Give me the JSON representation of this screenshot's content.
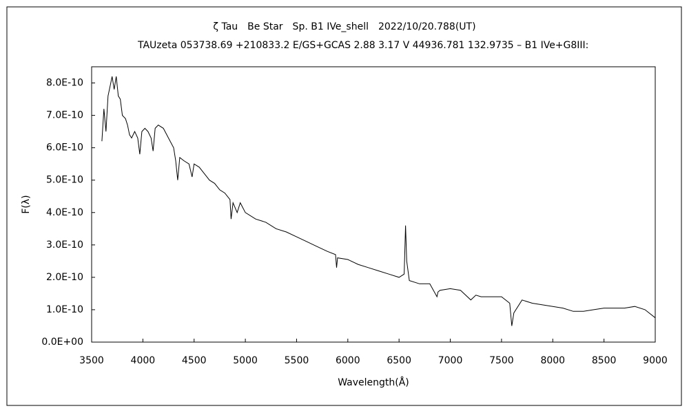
{
  "chart_data": {
    "type": "line",
    "title": "ζ Tau　Be Star　Sp. B1 IVe_shell　2022/10/20.788(UT)",
    "subtitle": "TAUzeta 053738.69 +210833.2 E/GS+GCAS 2.88 3.17 V 44936.781 132.9735 – B1 IVe+G8III:",
    "xlabel": "Wavelength(Å)",
    "ylabel": "F(λ)",
    "xlim": [
      3500,
      9000
    ],
    "xticks": [
      3500,
      4000,
      4500,
      5000,
      5500,
      6000,
      6500,
      7000,
      7500,
      8000,
      8500,
      9000
    ],
    "ylim": [
      0,
      8.5e-10
    ],
    "yticks": [
      {
        "value": 0,
        "label": "0.0E+00"
      },
      {
        "value": 1e-10,
        "label": "1.0E-10"
      },
      {
        "value": 2e-10,
        "label": "2.0E-10"
      },
      {
        "value": 3e-10,
        "label": "3.0E-10"
      },
      {
        "value": 4e-10,
        "label": "4.0E-10"
      },
      {
        "value": 5e-10,
        "label": "5.0E-10"
      },
      {
        "value": 6e-10,
        "label": "6.0E-10"
      },
      {
        "value": 7e-10,
        "label": "7.0E-10"
      },
      {
        "value": 8e-10,
        "label": "8.0E-10"
      }
    ],
    "color": "#000000",
    "x": [
      3600,
      3620,
      3640,
      3660,
      3680,
      3700,
      3720,
      3740,
      3760,
      3780,
      3800,
      3830,
      3850,
      3870,
      3890,
      3920,
      3950,
      3970,
      3990,
      4020,
      4050,
      4080,
      4100,
      4120,
      4150,
      4200,
      4250,
      4300,
      4320,
      4340,
      4360,
      4400,
      4450,
      4480,
      4500,
      4550,
      4600,
      4650,
      4700,
      4750,
      4800,
      4850,
      4861,
      4880,
      4920,
      4950,
      5000,
      5100,
      5200,
      5300,
      5400,
      5500,
      5600,
      5700,
      5800,
      5880,
      5890,
      5900,
      6000,
      6100,
      6200,
      6300,
      6400,
      6500,
      6550,
      6563,
      6575,
      6600,
      6700,
      6800,
      6870,
      6880,
      6900,
      7000,
      7100,
      7200,
      7250,
      7300,
      7400,
      7500,
      7580,
      7600,
      7620,
      7700,
      7800,
      7900,
      8000,
      8100,
      8200,
      8300,
      8400,
      8500,
      8600,
      8700,
      8800,
      8900,
      9000
    ],
    "values": [
      6.2e-10,
      7.2e-10,
      6.5e-10,
      7.6e-10,
      7.9e-10,
      8.2e-10,
      7.8e-10,
      8.2e-10,
      7.6e-10,
      7.5e-10,
      7e-10,
      6.9e-10,
      6.7e-10,
      6.4e-10,
      6.3e-10,
      6.5e-10,
      6.3e-10,
      5.8e-10,
      6.5e-10,
      6.6e-10,
      6.5e-10,
      6.3e-10,
      5.9e-10,
      6.6e-10,
      6.7e-10,
      6.6e-10,
      6.3e-10,
      6e-10,
      5.6e-10,
      5e-10,
      5.7e-10,
      5.6e-10,
      5.5e-10,
      5.1e-10,
      5.5e-10,
      5.4e-10,
      5.2e-10,
      5e-10,
      4.9e-10,
      4.7e-10,
      4.6e-10,
      4.4e-10,
      3.8e-10,
      4.3e-10,
      4e-10,
      4.3e-10,
      4e-10,
      3.8e-10,
      3.7e-10,
      3.5e-10,
      3.4e-10,
      3.25e-10,
      3.1e-10,
      2.95e-10,
      2.8e-10,
      2.7e-10,
      2.3e-10,
      2.6e-10,
      2.55e-10,
      2.4e-10,
      2.3e-10,
      2.2e-10,
      2.1e-10,
      2e-10,
      2.1e-10,
      3.6e-10,
      2.5e-10,
      1.9e-10,
      1.8e-10,
      1.8e-10,
      1.4e-10,
      1.55e-10,
      1.6e-10,
      1.65e-10,
      1.6e-10,
      1.3e-10,
      1.45e-10,
      1.4e-10,
      1.4e-10,
      1.4e-10,
      1.2e-10,
      5e-11,
      9e-11,
      1.3e-10,
      1.2e-10,
      1.15e-10,
      1.1e-10,
      1.05e-10,
      9.5e-11,
      9.5e-11,
      1e-10,
      1.05e-10,
      1.05e-10,
      1.05e-10,
      1.1e-10,
      1e-10,
      7.5e-11
    ]
  }
}
